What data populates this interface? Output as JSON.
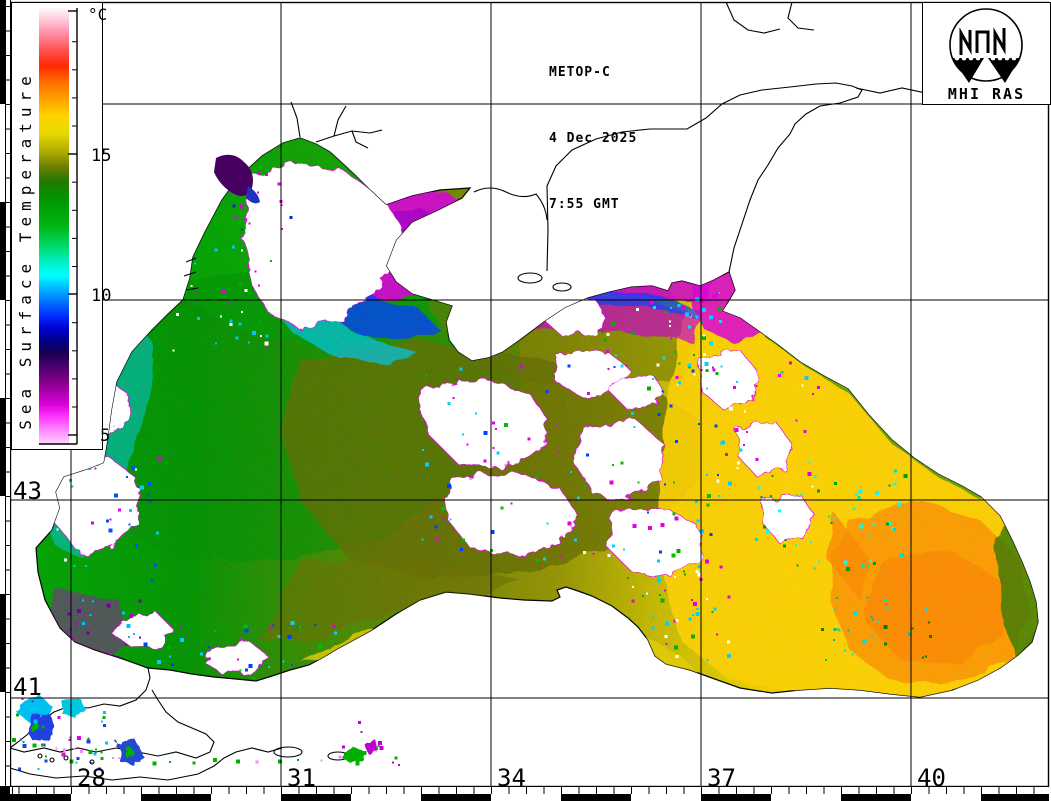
{
  "observation": {
    "satellite": "METOP-C",
    "date": "4 Dec 2025",
    "time": "7:55 GMT"
  },
  "provider": {
    "logo_label": "MHI RAS"
  },
  "colorbar": {
    "title": "Sea Surface Temperature",
    "unit": "°C",
    "ticks": [
      "15",
      "10",
      "5"
    ],
    "scale_top_c": 20,
    "scale_bottom_c": 5,
    "key_colors": [
      {
        "c": 20,
        "color": "#ffffff"
      },
      {
        "c": 18,
        "color": "#ff4f4f"
      },
      {
        "c": 17,
        "color": "#ff8c00"
      },
      {
        "c": 16,
        "color": "#ffd400"
      },
      {
        "c": 15,
        "color": "#a8a800"
      },
      {
        "c": 13,
        "color": "#009600"
      },
      {
        "c": 11,
        "color": "#00dc70"
      },
      {
        "c": 10.5,
        "color": "#00ffff"
      },
      {
        "c": 10,
        "color": "#0072ff"
      },
      {
        "c": 9,
        "color": "#0000d2"
      },
      {
        "c": 8,
        "color": "#1e0050"
      },
      {
        "c": 7,
        "color": "#780082"
      },
      {
        "c": 6,
        "color": "#dc00dc"
      },
      {
        "c": 5,
        "color": "#ff8cff"
      }
    ]
  },
  "grid": {
    "lon_labels": [
      "28",
      "31",
      "34",
      "37",
      "40"
    ],
    "lat_labels": [
      "43",
      "41"
    ]
  }
}
